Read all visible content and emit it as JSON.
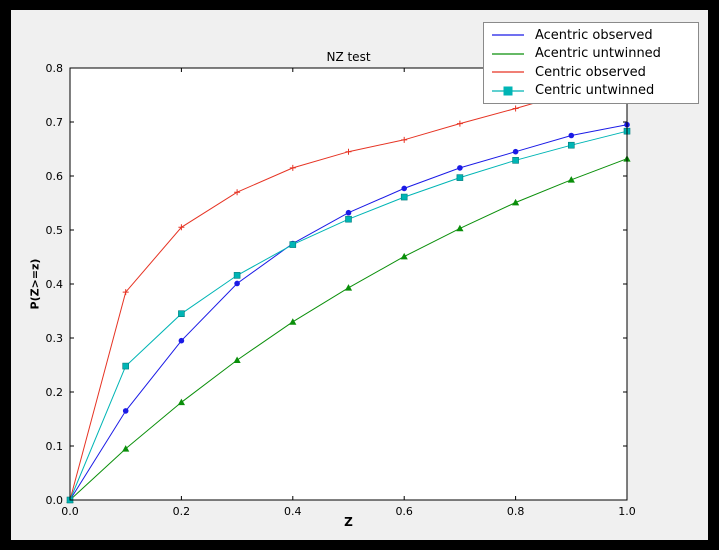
{
  "window": {
    "bg": "#000000",
    "figure_bg": "#f0f0f0",
    "axes_bg": "#ffffff",
    "frame_color": "#000000",
    "legend_border_color": "#8a8a8a"
  },
  "chart_data": {
    "type": "line",
    "title": "NZ test",
    "xlabel": "Z",
    "ylabel": "P(Z>=z)",
    "xlim": [
      0.0,
      1.0
    ],
    "ylim": [
      0.0,
      0.8
    ],
    "xticks": [
      0.0,
      0.2,
      0.4,
      0.6,
      0.8,
      1.0
    ],
    "yticks": [
      0.0,
      0.1,
      0.2,
      0.3,
      0.4,
      0.5,
      0.6,
      0.7,
      0.8
    ],
    "grid": false,
    "legend_position": "upper right",
    "x": [
      0.0,
      0.1,
      0.2,
      0.3,
      0.4,
      0.5,
      0.6,
      0.7,
      0.8,
      0.9,
      1.0
    ],
    "series": [
      {
        "name": "Acentric observed",
        "color": "#1a1ae6",
        "marker": "circle",
        "values": [
          0.0,
          0.165,
          0.295,
          0.401,
          0.475,
          0.532,
          0.577,
          0.615,
          0.645,
          0.675,
          0.695
        ]
      },
      {
        "name": "Acentric untwinned",
        "color": "#0a8f0a",
        "marker": "triangle",
        "values": [
          0.0,
          0.095,
          0.181,
          0.259,
          0.33,
          0.393,
          0.451,
          0.503,
          0.551,
          0.593,
          0.632
        ]
      },
      {
        "name": "Centric observed",
        "color": "#e63323",
        "marker": "plus",
        "values": [
          0.0,
          0.385,
          0.505,
          0.57,
          0.615,
          0.645,
          0.667,
          0.697,
          0.725,
          0.755,
          0.775
        ]
      },
      {
        "name": "Centric untwinned",
        "color": "#00b5b5",
        "marker": "square",
        "values": [
          0.0,
          0.248,
          0.345,
          0.416,
          0.473,
          0.52,
          0.561,
          0.597,
          0.629,
          0.657,
          0.683
        ]
      }
    ]
  }
}
